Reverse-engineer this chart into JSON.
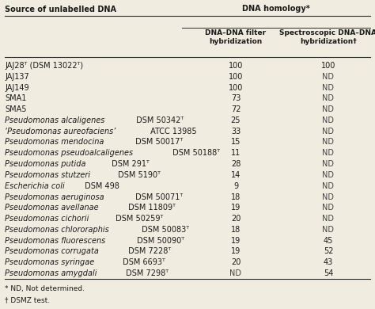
{
  "title_left": "Source of unlabelled DNA",
  "title_right": "DNA homology*",
  "col1_header": "DNA–DNA filter\nhybridization",
  "col2_header": "Spectroscopic DNA–DNA\nhybridization†",
  "rows": [
    {
      "label": "JAJ28ᵀ (DSM 13022ᵀ)",
      "col1": "100",
      "col2": "100",
      "label_style": "normal"
    },
    {
      "label": "JAJ137",
      "col1": "100",
      "col2": "ND",
      "label_style": "normal"
    },
    {
      "label": "JAJ149",
      "col1": "100",
      "col2": "ND",
      "label_style": "normal"
    },
    {
      "label": "SMA1",
      "col1": "73",
      "col2": "ND",
      "label_style": "normal"
    },
    {
      "label": "SMA5",
      "col1": "72",
      "col2": "ND",
      "label_style": "normal"
    },
    {
      "label_italic": "Pseudomonas alcaligenes",
      "label_normal": " DSM 50342ᵀ",
      "col1": "25",
      "col2": "ND"
    },
    {
      "label_italic": "‘Pseudomonas aureofaciens’",
      "label_normal": " ATCC 13985",
      "col1": "33",
      "col2": "ND"
    },
    {
      "label_italic": "Pseudomonas mendocina",
      "label_normal": " DSM 50017ᵀ",
      "col1": "15",
      "col2": "ND"
    },
    {
      "label_italic": "Pseudomonas pseudoalcaligenes",
      "label_normal": " DSM 50188ᵀ",
      "col1": "11",
      "col2": "ND"
    },
    {
      "label_italic": "Pseudomonas putida",
      "label_normal": " DSM 291ᵀ",
      "col1": "28",
      "col2": "ND"
    },
    {
      "label_italic": "Pseudomonas stutzeri",
      "label_normal": " DSM 5190ᵀ",
      "col1": "14",
      "col2": "ND"
    },
    {
      "label_italic": "Escherichia coli",
      "label_normal": " DSM 498",
      "col1": "9",
      "col2": "ND"
    },
    {
      "label_italic": "Pseudomonas aeruginosa",
      "label_normal": " DSM 50071ᵀ",
      "col1": "18",
      "col2": "ND"
    },
    {
      "label_italic": "Pseudomonas avellanae",
      "label_normal": " DSM 11809ᵀ",
      "col1": "19",
      "col2": "ND"
    },
    {
      "label_italic": "Pseudomonas cichorii",
      "label_normal": " DSM 50259ᵀ",
      "col1": "20",
      "col2": "ND"
    },
    {
      "label_italic": "Pseudomonas chlororaphis",
      "label_normal": " DSM 50083ᵀ",
      "col1": "18",
      "col2": "ND"
    },
    {
      "label_italic": "Pseudomonas fluorescens",
      "label_normal": " DSM 50090ᵀ",
      "col1": "19",
      "col2": "45"
    },
    {
      "label_italic": "Pseudomonas corrugata",
      "label_normal": " DSM 7228ᵀ",
      "col1": "19",
      "col2": "52"
    },
    {
      "label_italic": "Pseudomonas syringae",
      "label_normal": " DSM 6693ᵀ",
      "col1": "20",
      "col2": "43"
    },
    {
      "label_italic": "Pseudomonas amygdali",
      "label_normal": " DSM 7298ᵀ",
      "col1": "ND",
      "col2": "54"
    }
  ],
  "footnote1": "* ND, Not determined.",
  "footnote2": "† DSMZ test.",
  "bg_color": "#f0ece0",
  "line_color": "#2a2a2a",
  "text_color": "#1a1a1a",
  "nd_color": "#444444",
  "font_size": 7.0,
  "header_font_size": 7.0,
  "footnote_font_size": 6.5
}
